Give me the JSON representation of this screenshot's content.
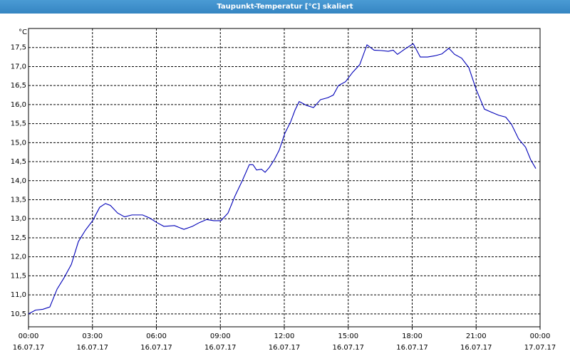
{
  "title": "Taupunkt-Temperatur [°C] skaliert",
  "chart_data": {
    "type": "line",
    "y_label": "°C",
    "x": [
      0,
      0.33,
      0.67,
      1.0,
      1.34,
      1.67,
      2.01,
      2.34,
      2.67,
      3.01,
      3.34,
      3.61,
      3.84,
      4.18,
      4.51,
      4.85,
      5.35,
      5.68,
      6.02,
      6.35,
      6.85,
      7.29,
      7.69,
      8.02,
      8.36,
      8.69,
      9.03,
      9.36,
      9.69,
      10.03,
      10.36,
      10.53,
      10.7,
      10.93,
      11.1,
      11.3,
      11.53,
      11.76,
      12.03,
      12.3,
      12.5,
      12.7,
      13.04,
      13.37,
      13.7,
      14.04,
      14.3,
      14.54,
      14.87,
      15.21,
      15.54,
      15.88,
      16.21,
      16.54,
      16.88,
      17.11,
      17.31,
      17.71,
      18.05,
      18.38,
      18.72,
      19.05,
      19.39,
      19.72,
      19.99,
      20.32,
      20.66,
      21.0,
      21.39,
      21.72,
      22.06,
      22.39,
      22.66,
      22.99,
      23.32,
      23.56,
      23.8
    ],
    "series": [
      {
        "name": "Taupunkt-Temperatur",
        "color": "#0000b8",
        "values": [
          10.5,
          10.6,
          10.62,
          10.68,
          11.15,
          11.45,
          11.8,
          12.4,
          12.7,
          12.95,
          13.3,
          13.4,
          13.35,
          13.15,
          13.05,
          13.1,
          13.1,
          13.02,
          12.9,
          12.8,
          12.82,
          12.72,
          12.8,
          12.9,
          12.98,
          12.95,
          12.95,
          13.15,
          13.6,
          14.0,
          14.42,
          14.42,
          14.28,
          14.3,
          14.22,
          14.35,
          14.55,
          14.8,
          15.25,
          15.55,
          15.85,
          16.08,
          15.98,
          15.92,
          16.13,
          16.18,
          16.25,
          16.5,
          16.6,
          16.85,
          17.05,
          17.57,
          17.43,
          17.42,
          17.4,
          17.43,
          17.32,
          17.48,
          17.6,
          17.25,
          17.25,
          17.28,
          17.33,
          17.48,
          17.32,
          17.22,
          16.97,
          16.4,
          15.88,
          15.8,
          15.72,
          15.67,
          15.48,
          15.1,
          14.88,
          14.55,
          14.32
        ]
      }
    ],
    "xlim": [
      0,
      24
    ],
    "xticks": [
      {
        "value": 0,
        "label": "00:00\n16.07.17"
      },
      {
        "value": 3,
        "label": "03:00\n16.07.17"
      },
      {
        "value": 6,
        "label": "06:00\n16.07.17"
      },
      {
        "value": 9,
        "label": "09:00\n16.07.17"
      },
      {
        "value": 12,
        "label": "12:00\n16.07.17"
      },
      {
        "value": 15,
        "label": "15:00\n16.07.17"
      },
      {
        "value": 18,
        "label": "18:00\n16.07.17"
      },
      {
        "value": 21,
        "label": "21:00\n16.07.17"
      },
      {
        "value": 24,
        "label": "00:00\n17.07.17"
      }
    ],
    "ylim": [
      10.16,
      18.0
    ],
    "yticks": [
      {
        "value": 10.5,
        "label": "10,5"
      },
      {
        "value": 11,
        "label": "11,0"
      },
      {
        "value": 11.5,
        "label": "11,5"
      },
      {
        "value": 12,
        "label": "12,0"
      },
      {
        "value": 12.5,
        "label": "12,5"
      },
      {
        "value": 13,
        "label": "13,0"
      },
      {
        "value": 13.5,
        "label": "13,5"
      },
      {
        "value": 14,
        "label": "14,0"
      },
      {
        "value": 14.5,
        "label": "14,5"
      },
      {
        "value": 15,
        "label": "15,0"
      },
      {
        "value": 15.5,
        "label": "15,5"
      },
      {
        "value": 16,
        "label": "16,0"
      },
      {
        "value": 16.5,
        "label": "16,5"
      },
      {
        "value": 17,
        "label": "17,0"
      },
      {
        "value": 17.5,
        "label": "17,5"
      }
    ],
    "grid": true
  }
}
